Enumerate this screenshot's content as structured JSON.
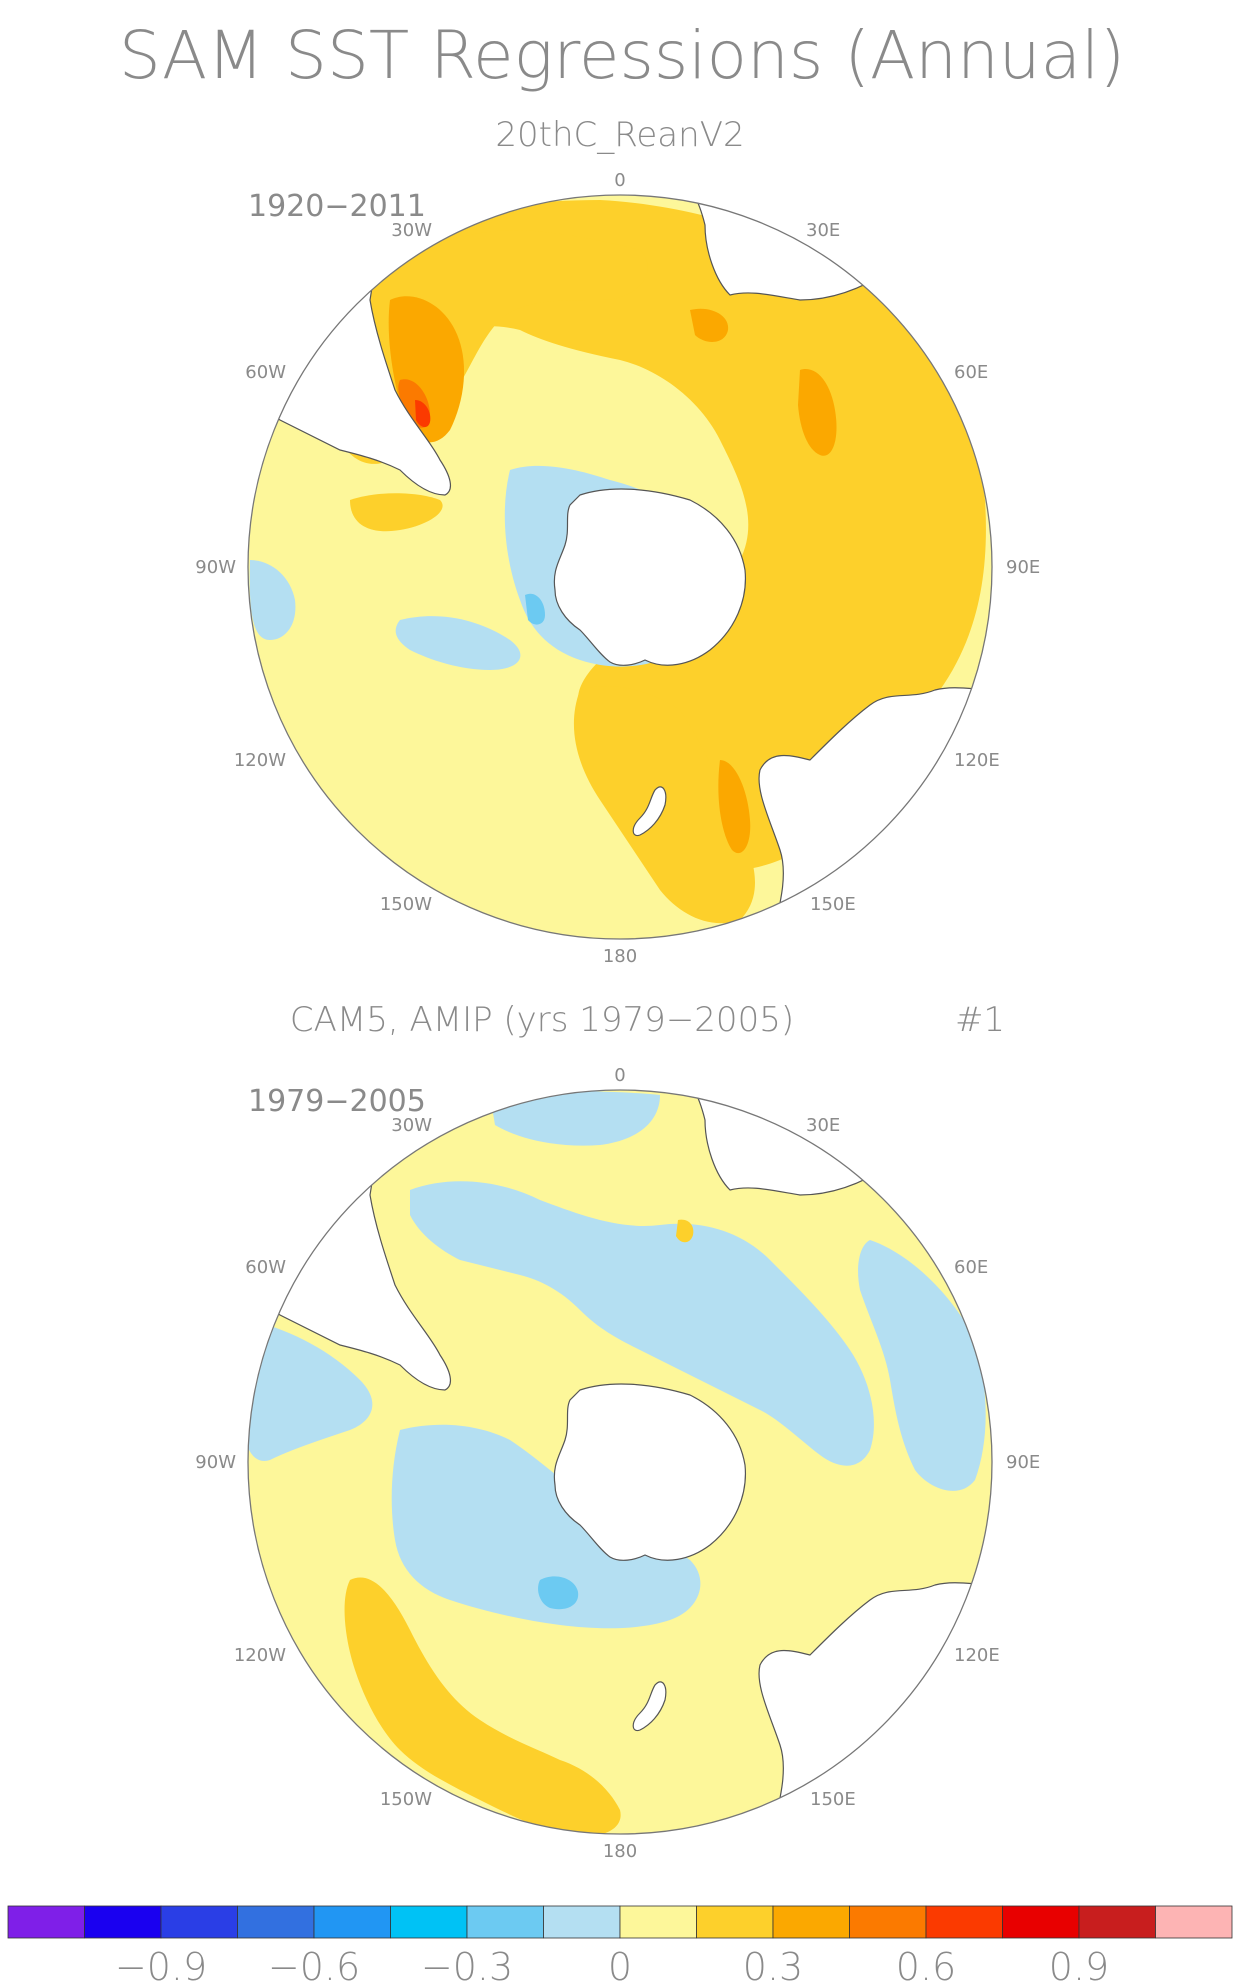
{
  "title": "SAM SST Regressions (Annual)",
  "colors": {
    "land": "#ffffff",
    "coast": "#555555",
    "rim": "#777777",
    "text": "#8a8a8a"
  },
  "panels": [
    {
      "id": "top",
      "title": "20thC_ReanV2",
      "period": "1920−2011",
      "number": "",
      "labels": {
        "lon0": "0",
        "e30": "30E",
        "e60": "60E",
        "e90": "90E",
        "e120": "120E",
        "e150": "150E",
        "lon180": "180",
        "w150": "150W",
        "w120": "120W",
        "w90": "90W",
        "w60": "60W",
        "w30": "30W"
      },
      "background_level": "0 to 0.15"
    },
    {
      "id": "bottom",
      "title": "CAM5, AMIP (yrs 1979−2005)",
      "period": "1979−2005",
      "number": "#1",
      "labels": {
        "lon0": "0",
        "e30": "30E",
        "e60": "60E",
        "e90": "90E",
        "e120": "120E",
        "e150": "150E",
        "lon180": "180",
        "w150": "150W",
        "w120": "120W",
        "w90": "90W",
        "w60": "60W",
        "w30": "30W"
      },
      "background_level": "0 to 0.15"
    }
  ],
  "colorbar": {
    "levels": [
      {
        "color": "#7f1fe8"
      },
      {
        "color": "#1a00f0"
      },
      {
        "color": "#2a3ee6"
      },
      {
        "color": "#3270e0"
      },
      {
        "color": "#2196f3"
      },
      {
        "color": "#00c2f5"
      },
      {
        "color": "#6ccaf2"
      },
      {
        "color": "#b4dff2"
      },
      {
        "color": "#fdf79a"
      },
      {
        "color": "#fdd02b"
      },
      {
        "color": "#fba800"
      },
      {
        "color": "#fb7a00"
      },
      {
        "color": "#fb3a00"
      },
      {
        "color": "#e80000"
      },
      {
        "color": "#c81e1e"
      },
      {
        "color": "#fdb4b4"
      }
    ],
    "tick_labels": [
      "−0.9",
      "−0.6",
      "−0.3",
      "0",
      "0.3",
      "0.6",
      "0.9"
    ],
    "tick_values": [
      -0.9,
      -0.6,
      -0.3,
      0,
      0.3,
      0.6,
      0.9
    ]
  }
}
